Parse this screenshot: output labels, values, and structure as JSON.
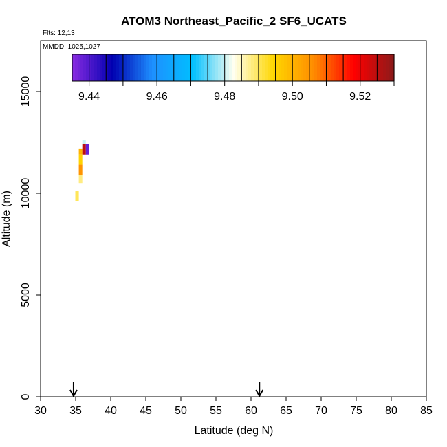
{
  "chart_data": {
    "type": "heatmap",
    "title": "ATOM3 Northeast_Pacific_2 SF6_UCATS",
    "flights_label": "Flts: 12,13",
    "dates_label": "MMDD: 1025,1027",
    "xlabel": "Latitude (deg N)",
    "ylabel": "Altitude (m)",
    "xlim": [
      30,
      85
    ],
    "ylim": [
      0,
      17500
    ],
    "x_ticks": [
      "30",
      "35",
      "40",
      "45",
      "50",
      "55",
      "60",
      "65",
      "70",
      "75",
      "80",
      "85"
    ],
    "y_ticks": [
      "0",
      "5000",
      "10000",
      "15000"
    ],
    "colorbar": {
      "range": [
        9.435,
        9.53
      ],
      "ticks": [
        "9.44",
        "9.46",
        "9.48",
        "9.50",
        "9.52"
      ],
      "colors": [
        "#8a2be2",
        "#0000b0",
        "#1e90ff",
        "#00bfff",
        "#fffff0",
        "#ffd700",
        "#ff8c00",
        "#ff0000",
        "#8b1a1a"
      ]
    },
    "arrows_at_latitude": [
      34.7,
      61.2
    ],
    "cells": [
      {
        "lat": 35.2,
        "alt_min": 9600,
        "alt_max": 10100,
        "value": 9.49
      },
      {
        "lat": 35.7,
        "alt_min": 10500,
        "alt_max": 10900,
        "value": 9.488
      },
      {
        "lat": 35.7,
        "alt_min": 10900,
        "alt_max": 11400,
        "value": 9.505
      },
      {
        "lat": 35.7,
        "alt_min": 11400,
        "alt_max": 11900,
        "value": 9.495
      },
      {
        "lat": 35.7,
        "alt_min": 11900,
        "alt_max": 12200,
        "value": 9.5
      },
      {
        "lat": 36.2,
        "alt_min": 11900,
        "alt_max": 12400,
        "value": 9.525
      },
      {
        "lat": 36.7,
        "alt_min": 11900,
        "alt_max": 12400,
        "value": 9.438
      },
      {
        "lat": 36.2,
        "alt_min": 12400,
        "alt_max": 12600,
        "value": 9.48
      }
    ]
  }
}
